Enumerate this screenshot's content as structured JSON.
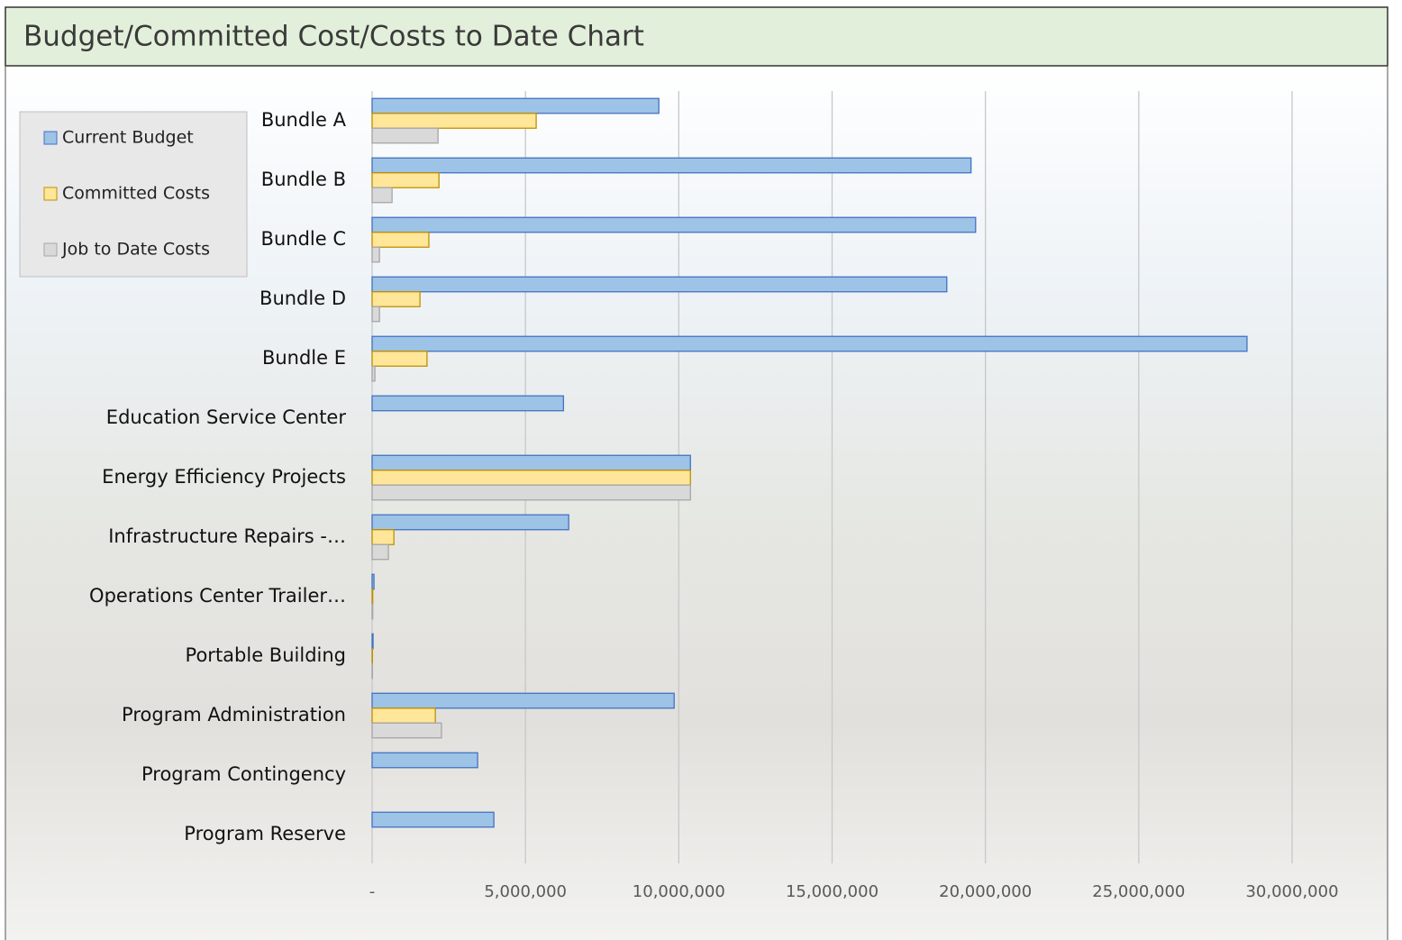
{
  "chart_data": {
    "type": "hbar",
    "title": "Budget/Committed Cost/Costs to Date Chart",
    "categories": [
      "Bundle A",
      "Bundle B",
      "Bundle C",
      "Bundle D",
      "Bundle E",
      "Education Service Center",
      "Energy Efficiency Projects",
      "Infrastructure Repairs -…",
      "Operations Center Trailer…",
      "Portable Building",
      "Program Administration",
      "Program Contingency",
      "Program Reserve"
    ],
    "series": [
      {
        "name": "Current Budget",
        "color": "#9dc3e6",
        "stroke": "#4472c4",
        "values": [
          9350000,
          19530000,
          19680000,
          18740000,
          28530000,
          6240000,
          10380000,
          6410000,
          60000,
          30000,
          9850000,
          3440000,
          3970000
        ]
      },
      {
        "name": "Committed Costs",
        "color": "#ffe699",
        "stroke": "#bf9000",
        "values": [
          5350000,
          2180000,
          1850000,
          1560000,
          1790000,
          0,
          10380000,
          710000,
          20000,
          10000,
          2060000,
          0,
          0
        ]
      },
      {
        "name": "Job to Date Costs",
        "color": "#d9d9d9",
        "stroke": "#a6a6a6",
        "values": [
          2150000,
          650000,
          240000,
          240000,
          90000,
          0,
          10380000,
          530000,
          20000,
          10000,
          2260000,
          0,
          0
        ]
      }
    ],
    "xlim": [
      0,
      30000000
    ],
    "xticks": [
      {
        "value": 0,
        "label": "-"
      },
      {
        "value": 5000000,
        "label": "5,000,000"
      },
      {
        "value": 10000000,
        "label": "10,000,000"
      },
      {
        "value": 15000000,
        "label": "15,000,000"
      },
      {
        "value": 20000000,
        "label": "20,000,000"
      },
      {
        "value": 25000000,
        "label": "25,000,000"
      },
      {
        "value": 30000000,
        "label": "30,000,000"
      }
    ],
    "grid": true,
    "legend": "top-left"
  }
}
